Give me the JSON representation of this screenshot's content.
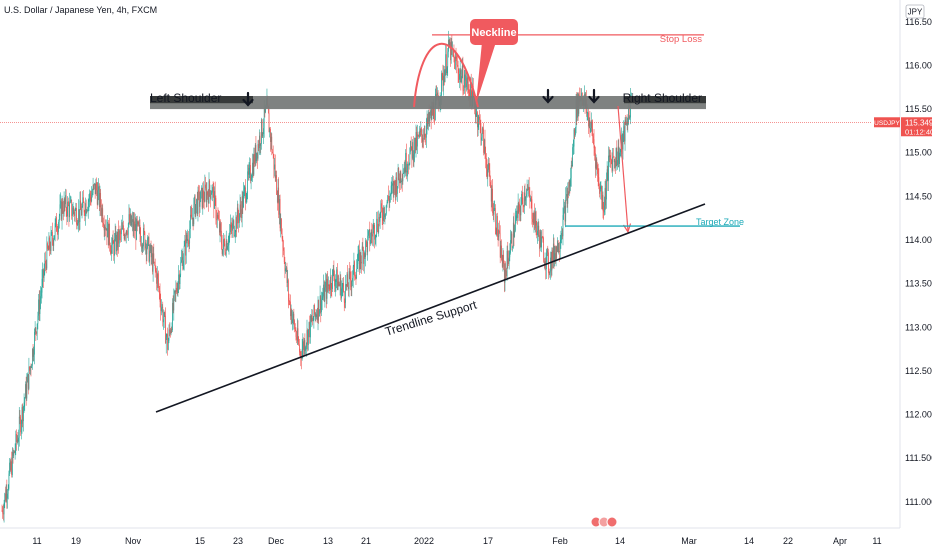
{
  "header": {
    "title": "U.S. Dollar / Japanese Yen, 4h, FXCM",
    "currency": "JPY"
  },
  "price_tag": {
    "symbol": "USDJPY",
    "price": "115.349",
    "countdown": "01:12:40"
  },
  "annotations": {
    "neckline": "Neckline",
    "stop_loss": "Stop Loss",
    "left_shoulder": "Left Shoulder",
    "right_shoulder": "Right Shoulder",
    "target_zone": "Target Zone",
    "trendline_support": "Trendline Support"
  },
  "colors": {
    "up": "#26a69a",
    "down": "#ef5350",
    "neckline": "#f05a5f",
    "target": "#1eaab8",
    "zone": "#787b7a",
    "zone_dark": "#373a3a"
  },
  "chart_data": {
    "type": "candlestick",
    "ylim": [
      110.7,
      116.75
    ],
    "y_ticks": [
      111.0,
      111.5,
      112.0,
      112.5,
      113.0,
      113.5,
      114.0,
      114.5,
      115.0,
      115.5,
      116.0,
      116.5
    ],
    "x_ticks": [
      "11",
      "19",
      "Nov",
      "15",
      "23",
      "Dec",
      "13",
      "21",
      "2022",
      "17",
      "Feb",
      "14",
      "Mar",
      "14",
      "22",
      "Apr",
      "11"
    ],
    "current_price": 115.349,
    "price_path": [
      [
        0,
        110.9
      ],
      [
        3,
        111.8
      ],
      [
        5,
        112.5
      ],
      [
        8,
        113.8
      ],
      [
        11,
        114.4
      ],
      [
        14,
        114.3
      ],
      [
        17,
        114.6
      ],
      [
        20,
        113.9
      ],
      [
        23,
        114.2
      ],
      [
        26,
        114.0
      ],
      [
        28,
        113.6
      ],
      [
        30,
        112.8
      ],
      [
        32,
        113.6
      ],
      [
        35,
        114.4
      ],
      [
        38,
        114.6
      ],
      [
        40,
        113.9
      ],
      [
        43,
        114.3
      ],
      [
        46,
        115.0
      ],
      [
        48,
        115.5
      ],
      [
        50,
        114.5
      ],
      [
        52,
        113.3
      ],
      [
        54,
        112.7
      ],
      [
        57,
        113.2
      ],
      [
        60,
        113.6
      ],
      [
        62,
        113.4
      ],
      [
        65,
        113.8
      ],
      [
        68,
        114.2
      ],
      [
        71,
        114.6
      ],
      [
        74,
        115.0
      ],
      [
        77,
        115.3
      ],
      [
        79,
        115.6
      ],
      [
        81,
        116.2
      ],
      [
        83,
        115.9
      ],
      [
        85,
        115.7
      ],
      [
        87,
        115.2
      ],
      [
        89,
        114.4
      ],
      [
        91,
        113.6
      ],
      [
        93,
        114.2
      ],
      [
        95,
        114.6
      ],
      [
        97,
        114.1
      ],
      [
        99,
        113.7
      ],
      [
        101,
        114.0
      ],
      [
        103,
        114.7
      ],
      [
        104,
        115.5
      ],
      [
        105,
        115.7
      ],
      [
        107,
        115.2
      ],
      [
        108,
        114.7
      ],
      [
        109,
        114.4
      ],
      [
        110,
        114.9
      ],
      [
        112,
        115.0
      ],
      [
        114,
        115.6
      ]
    ],
    "neckline_level": 116.35,
    "stop_loss_level": 116.35,
    "shoulder_zone": [
      115.5,
      115.65
    ],
    "target_level": 114.16,
    "trendline": [
      [
        0,
        112.0
      ],
      [
        114,
        114.5
      ]
    ]
  }
}
